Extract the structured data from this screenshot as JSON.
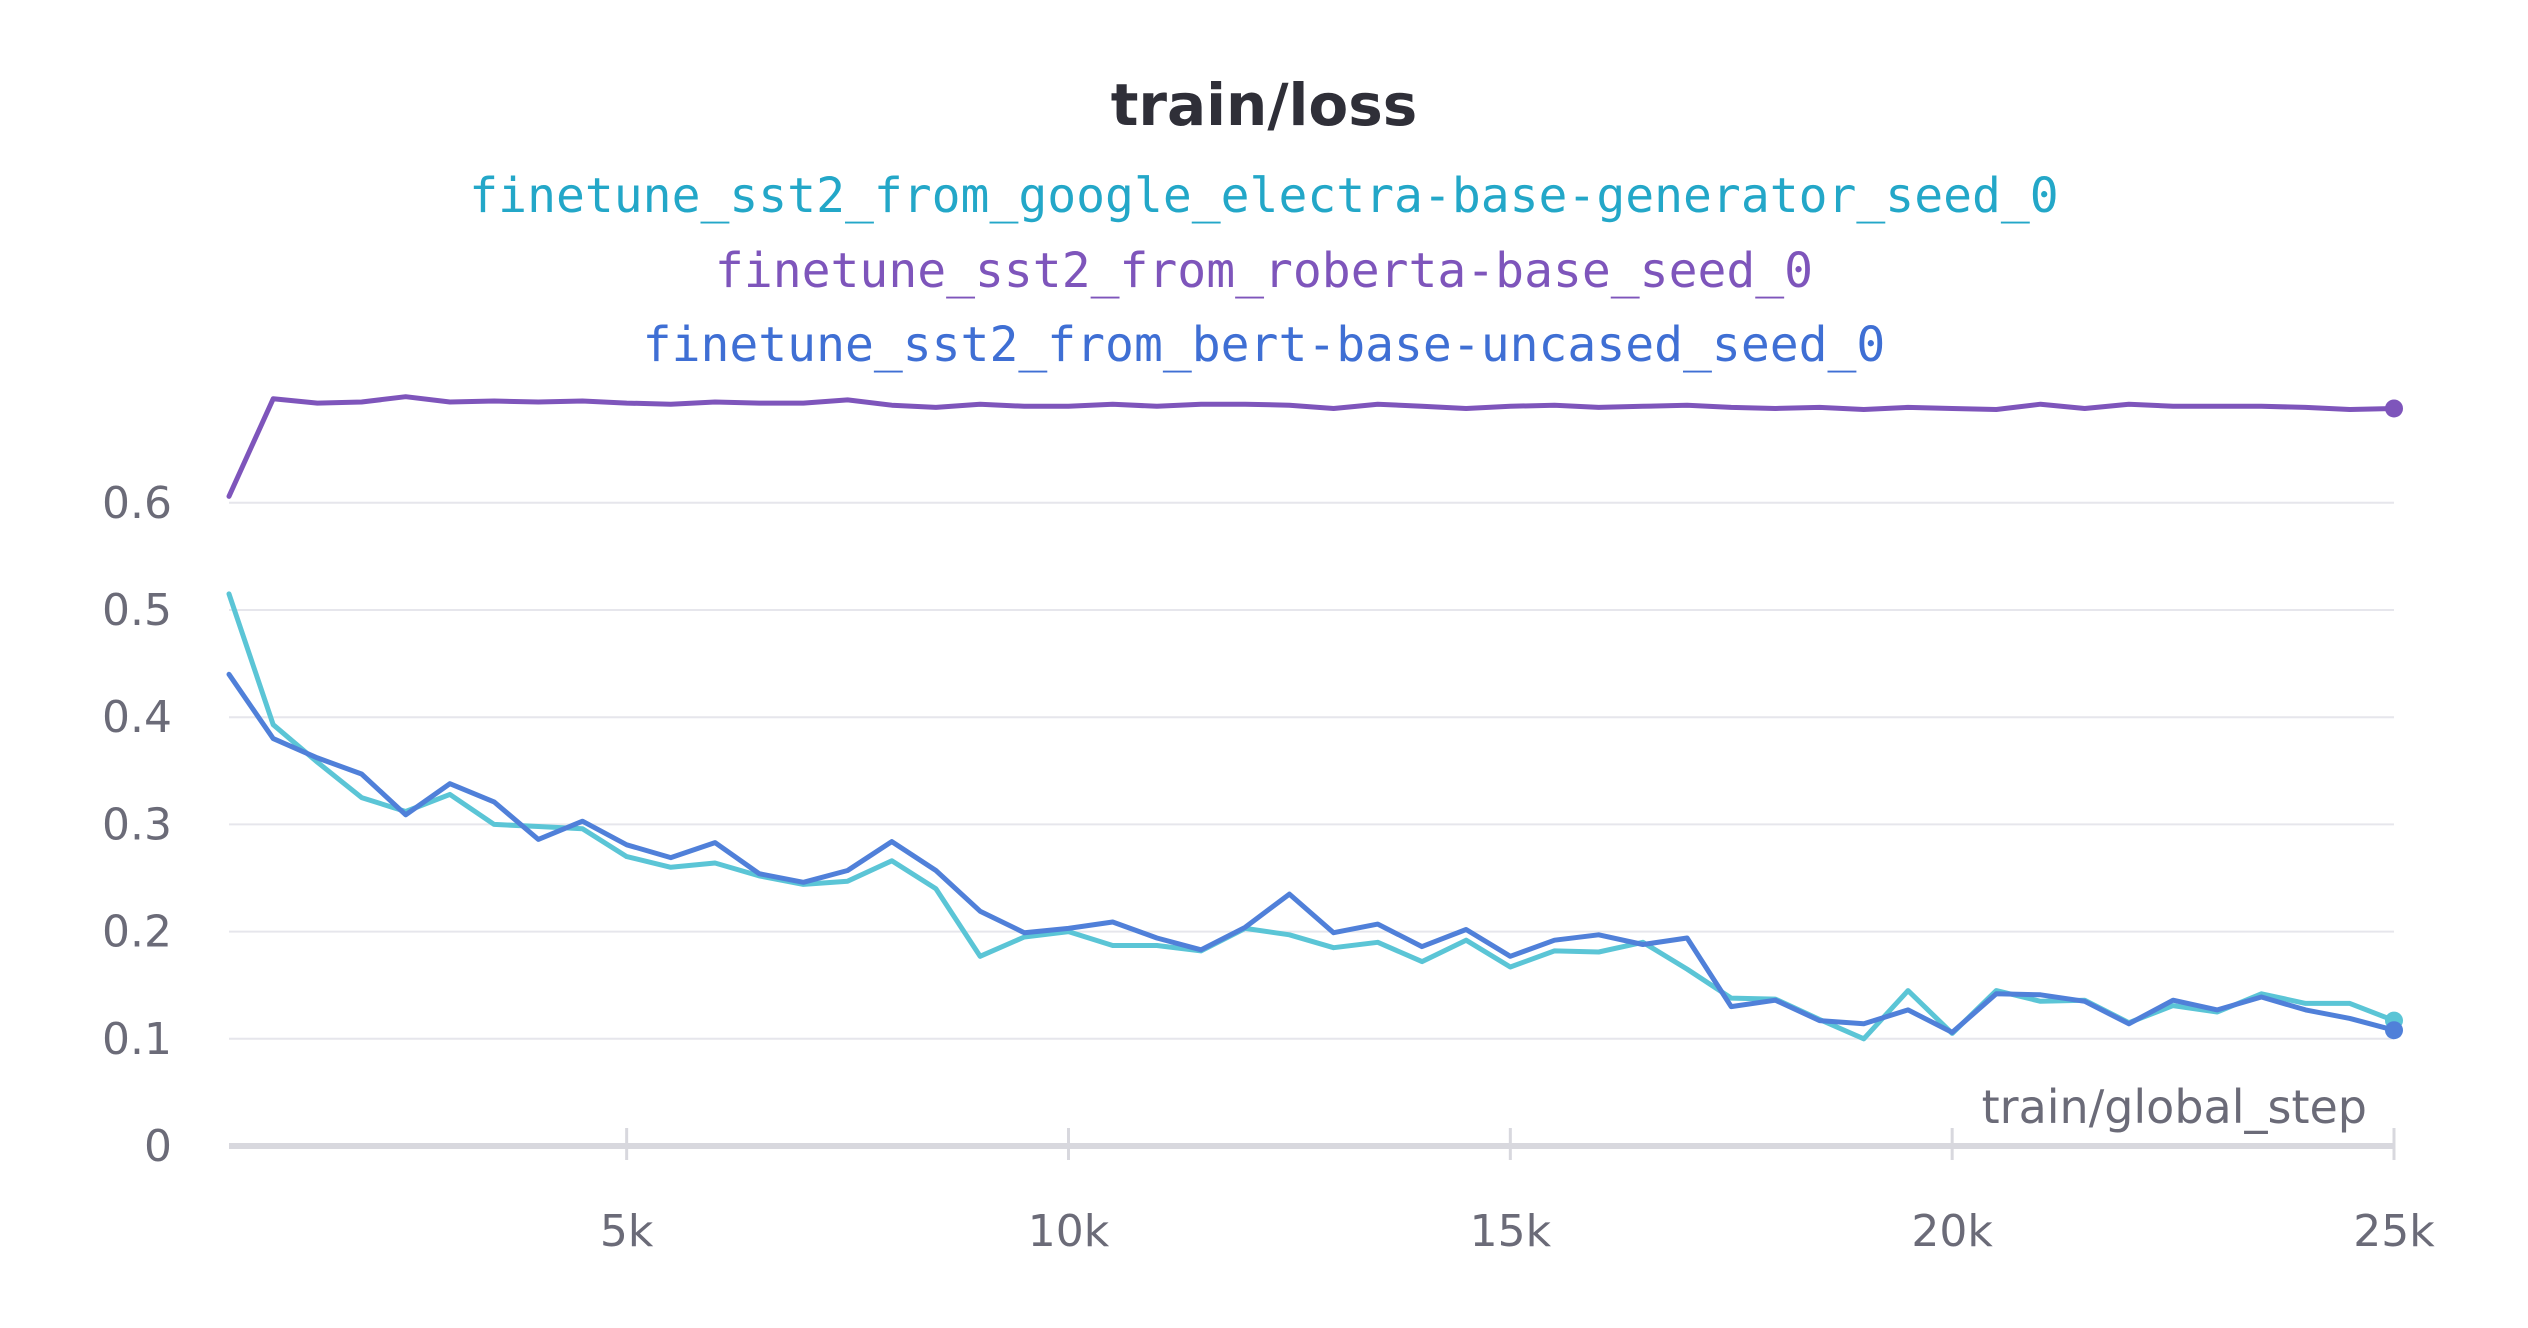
{
  "chart_data": {
    "type": "line",
    "title": "train/loss",
    "xlabel": "train/global_step",
    "ylabel": "",
    "xlim": [
      0,
      25000
    ],
    "ylim": [
      0,
      0.7
    ],
    "y_ticks": [
      0,
      0.1,
      0.2,
      0.3,
      0.4,
      0.5,
      0.6
    ],
    "y_tick_labels": [
      "0",
      "0.1",
      "0.2",
      "0.3",
      "0.4",
      "0.5",
      "0.6"
    ],
    "x_ticks": [
      5000,
      10000,
      15000,
      20000,
      25000
    ],
    "x_tick_labels": [
      "5k",
      "10k",
      "15k",
      "20k",
      "25k"
    ],
    "grid": true,
    "legend_position": "top-center",
    "series": [
      {
        "name": "finetune_sst2_from_google_electra-base-generator_seed_0",
        "color": "#5bc5d6",
        "legend_color": "#23a7c8",
        "x": [
          500,
          1000,
          1500,
          2000,
          2500,
          3000,
          3500,
          4000,
          4500,
          5000,
          5500,
          6000,
          6500,
          7000,
          7500,
          8000,
          8500,
          9000,
          9500,
          10000,
          10500,
          11000,
          11500,
          12000,
          12500,
          13000,
          13500,
          14000,
          14500,
          15000,
          15500,
          16000,
          16500,
          17000,
          17500,
          18000,
          18500,
          19000,
          19500,
          20000,
          20500,
          21000,
          21500,
          22000,
          22500,
          23000,
          23500,
          24000,
          24500,
          25000
        ],
        "y": [
          0.515,
          0.393,
          0.358,
          0.325,
          0.312,
          0.328,
          0.3,
          0.298,
          0.296,
          0.27,
          0.26,
          0.264,
          0.252,
          0.244,
          0.247,
          0.266,
          0.24,
          0.177,
          0.195,
          0.2,
          0.187,
          0.187,
          0.182,
          0.203,
          0.197,
          0.185,
          0.19,
          0.172,
          0.192,
          0.167,
          0.182,
          0.181,
          0.19,
          0.165,
          0.138,
          0.137,
          0.118,
          0.1,
          0.145,
          0.105,
          0.145,
          0.135,
          0.136,
          0.115,
          0.131,
          0.125,
          0.142,
          0.133,
          0.133,
          0.117
        ]
      },
      {
        "name": "finetune_sst2_from_roberta-base_seed_0",
        "color": "#7e55bb",
        "legend_color": "#7e55bb",
        "x": [
          500,
          1000,
          1500,
          2000,
          2500,
          3000,
          3500,
          4000,
          4500,
          5000,
          5500,
          6000,
          6500,
          7000,
          7500,
          8000,
          8500,
          9000,
          9500,
          10000,
          10500,
          11000,
          11500,
          12000,
          12500,
          13000,
          13500,
          14000,
          14500,
          15000,
          15500,
          16000,
          16500,
          17000,
          17500,
          18000,
          18500,
          19000,
          19500,
          20000,
          20500,
          21000,
          21500,
          22000,
          22500,
          23000,
          23500,
          24000,
          24500,
          25000
        ],
        "y": [
          0.606,
          0.697,
          0.693,
          0.694,
          0.699,
          0.694,
          0.695,
          0.694,
          0.695,
          0.693,
          0.692,
          0.694,
          0.693,
          0.693,
          0.696,
          0.691,
          0.689,
          0.692,
          0.69,
          0.69,
          0.692,
          0.69,
          0.692,
          0.692,
          0.691,
          0.688,
          0.692,
          0.69,
          0.688,
          0.69,
          0.691,
          0.689,
          0.69,
          0.691,
          0.689,
          0.688,
          0.689,
          0.687,
          0.689,
          0.688,
          0.687,
          0.692,
          0.688,
          0.692,
          0.69,
          0.69,
          0.69,
          0.689,
          0.687,
          0.688
        ]
      },
      {
        "name": "finetune_sst2_from_bert-base-uncased_seed_0",
        "color": "#5080d9",
        "legend_color": "#3f6fd4",
        "x": [
          500,
          1000,
          1500,
          2000,
          2500,
          3000,
          3500,
          4000,
          4500,
          5000,
          5500,
          6000,
          6500,
          7000,
          7500,
          8000,
          8500,
          9000,
          9500,
          10000,
          10500,
          11000,
          11500,
          12000,
          12500,
          13000,
          13500,
          14000,
          14500,
          15000,
          15500,
          16000,
          16500,
          17000,
          17500,
          18000,
          18500,
          19000,
          19500,
          20000,
          20500,
          21000,
          21500,
          22000,
          22500,
          23000,
          23500,
          24000,
          24500,
          25000
        ],
        "y": [
          0.44,
          0.38,
          0.362,
          0.347,
          0.309,
          0.338,
          0.321,
          0.286,
          0.303,
          0.281,
          0.269,
          0.283,
          0.254,
          0.246,
          0.257,
          0.284,
          0.257,
          0.219,
          0.199,
          0.203,
          0.209,
          0.194,
          0.183,
          0.204,
          0.235,
          0.199,
          0.207,
          0.186,
          0.202,
          0.177,
          0.192,
          0.197,
          0.188,
          0.194,
          0.13,
          0.136,
          0.117,
          0.114,
          0.127,
          0.106,
          0.142,
          0.141,
          0.135,
          0.114,
          0.136,
          0.127,
          0.139,
          0.127,
          0.119,
          0.108
        ]
      }
    ]
  }
}
